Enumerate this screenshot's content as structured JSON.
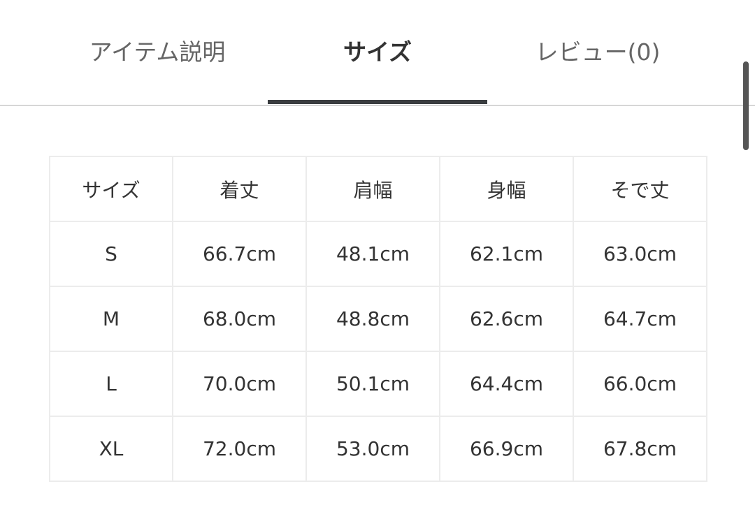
{
  "tabs": [
    {
      "label": "アイテム説明",
      "active": false
    },
    {
      "label": "サイズ",
      "active": true
    },
    {
      "label": "レビュー(0)",
      "active": false
    }
  ],
  "size_table": {
    "headers": [
      "サイズ",
      "着丈",
      "肩幅",
      "身幅",
      "そで丈"
    ],
    "rows": [
      [
        "S",
        "66.7cm",
        "48.1cm",
        "62.1cm",
        "63.0cm"
      ],
      [
        "M",
        "68.0cm",
        "48.8cm",
        "62.6cm",
        "64.7cm"
      ],
      [
        "L",
        "70.0cm",
        "50.1cm",
        "64.4cm",
        "66.0cm"
      ],
      [
        "XL",
        "72.0cm",
        "53.0cm",
        "66.9cm",
        "67.8cm"
      ]
    ]
  },
  "colors": {
    "active_tab_indicator": "#3a3d40",
    "divider": "#d6d6d6",
    "table_border": "#ececec"
  }
}
